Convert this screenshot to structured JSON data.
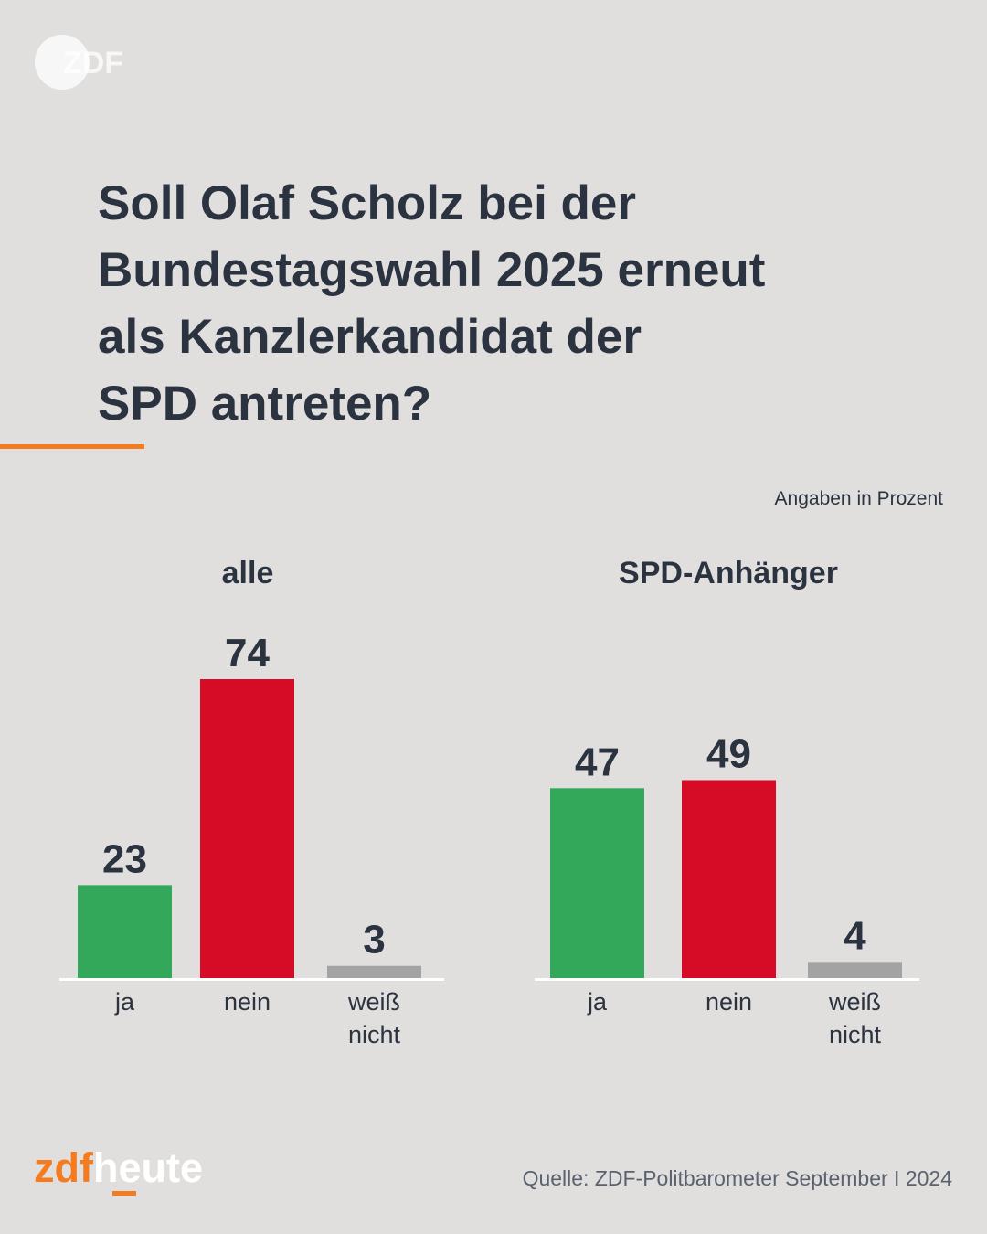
{
  "header": {
    "logo_text": "ZDF",
    "title_lines": [
      "Soll Olaf Scholz bei der",
      "Bundestagswahl 2025 erneut",
      "als Kanzlerkandidat der",
      "SPD antreten?"
    ],
    "accent_color": "#f47b20"
  },
  "unit_note": "Angaben in Prozent",
  "chart_data": [
    {
      "type": "bar",
      "title": "alle",
      "categories": [
        "ja",
        "nein",
        "weiß nicht"
      ],
      "category_lines": [
        [
          "ja"
        ],
        [
          "nein"
        ],
        [
          "weiß",
          "nicht"
        ]
      ],
      "values": [
        23,
        74,
        3
      ],
      "colors": [
        "#34a85a",
        "#d60c27",
        "#a3a3a3"
      ],
      "ylim": [
        0,
        100
      ],
      "grid": false
    },
    {
      "type": "bar",
      "title": "SPD-Anhänger",
      "categories": [
        "ja",
        "nein",
        "weiß nicht"
      ],
      "category_lines": [
        [
          "ja"
        ],
        [
          "nein"
        ],
        [
          "weiß",
          "nicht"
        ]
      ],
      "values": [
        47,
        49,
        4
      ],
      "colors": [
        "#34a85a",
        "#d60c27",
        "#a3a3a3"
      ],
      "ylim": [
        0,
        100
      ],
      "grid": false
    }
  ],
  "footer": {
    "brand_part1": "zdf",
    "brand_part2": "heute",
    "source": "Quelle: ZDF-Politbarometer September I 2024"
  }
}
